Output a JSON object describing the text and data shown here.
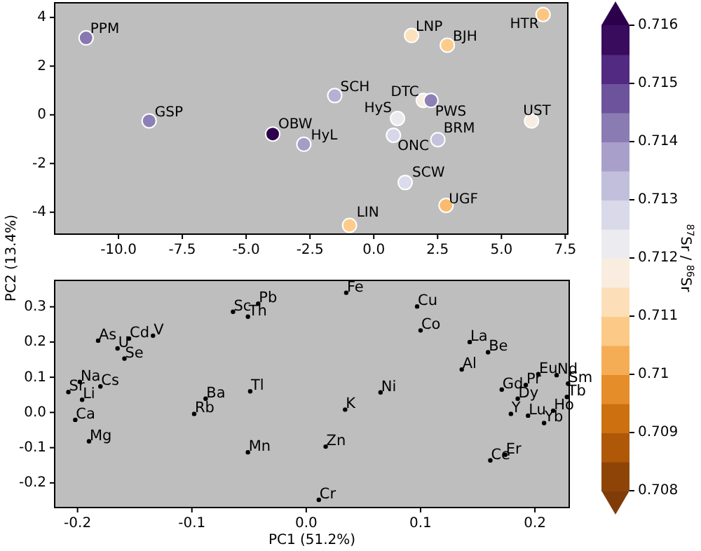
{
  "chart_data": [
    {
      "type": "scatter",
      "ylabel": "PC2 (13.4%)",
      "clabel": "$^{87}$Sr / $^{86}$Sr",
      "clim": [
        0.708,
        0.716
      ],
      "cticks": [
        0.708,
        0.709,
        0.71,
        0.711,
        0.712,
        0.713,
        0.714,
        0.715,
        0.716
      ],
      "xlim": [
        -12.5,
        7.6
      ],
      "ylim": [
        -4.9,
        4.6
      ],
      "xticks": [
        {
          "value": -10,
          "label": "-10.0"
        },
        {
          "value": -7.5,
          "label": "-7.5"
        },
        {
          "value": -5,
          "label": "-5.0"
        },
        {
          "value": -2.5,
          "label": "-2.5"
        },
        {
          "value": 0,
          "label": "0.0"
        },
        {
          "value": 2.5,
          "label": "2.5"
        },
        {
          "value": 5,
          "label": "5.0"
        },
        {
          "value": 7.5,
          "label": "7.5"
        }
      ],
      "yticks": [
        -4,
        -2,
        0,
        2,
        4
      ],
      "marker": "circle",
      "series": [
        {
          "x": [
            -11.27,
            -8.8,
            -3.96,
            -2.74,
            -1.53,
            -0.95,
            0.93,
            0.77,
            1.48,
            1.23,
            1.94,
            2.24,
            2.51,
            2.88,
            2.83,
            6.18,
            6.63
          ],
          "values": [
            3.16,
            -0.25,
            -0.79,
            -1.21,
            0.79,
            -4.54,
            -0.15,
            -0.84,
            3.26,
            -2.78,
            0.59,
            0.59,
            -1.02,
            2.86,
            -3.72,
            -0.25,
            4.12
          ],
          "cvalues": [
            0.7143,
            0.7142,
            0.716,
            0.7138,
            0.7135,
            0.7108,
            0.7123,
            0.7128,
            0.7113,
            0.7127,
            0.7118,
            0.7142,
            0.7132,
            0.7108,
            0.7105,
            0.7118,
            0.7107
          ]
        }
      ],
      "annotations": [
        {
          "text": "PPM",
          "x": -11.27,
          "y": 3.16
        },
        {
          "text": "GSP",
          "x": -8.8,
          "y": -0.25
        },
        {
          "text": "OBW",
          "x": -3.96,
          "y": -0.79
        },
        {
          "text": "HyL",
          "x": -2.74,
          "y": -1.21
        },
        {
          "text": "SCH",
          "x": -1.53,
          "y": 0.79
        },
        {
          "text": "LIN",
          "x": -0.95,
          "y": -4.54
        },
        {
          "text": "HyS",
          "x": 0.93,
          "y": -0.15
        },
        {
          "text": "ONC",
          "x": 0.77,
          "y": -0.84
        },
        {
          "text": "LNP",
          "x": 1.48,
          "y": 3.26
        },
        {
          "text": "SCW",
          "x": 1.23,
          "y": -2.78
        },
        {
          "text": "DTC",
          "x": 1.94,
          "y": 0.59
        },
        {
          "text": "PWS",
          "x": 2.24,
          "y": 0.59
        },
        {
          "text": "BRM",
          "x": 2.51,
          "y": -1.02
        },
        {
          "text": "BJH",
          "x": 2.88,
          "y": 2.86
        },
        {
          "text": "UGF",
          "x": 2.83,
          "y": -3.72
        },
        {
          "text": "UST",
          "x": 6.18,
          "y": -0.25
        },
        {
          "text": "HTR",
          "x": 6.63,
          "y": 4.12
        }
      ]
    },
    {
      "type": "scatter",
      "xlabel": "PC1 (51.2%)",
      "xlim": [
        -0.22,
        0.23
      ],
      "ylim": [
        -0.27,
        0.375
      ],
      "marker": "circle",
      "xticks": [
        {
          "value": -0.2,
          "label": "-0.2"
        },
        {
          "value": -0.1,
          "label": "-0.1"
        },
        {
          "value": 0,
          "label": "0.0"
        },
        {
          "value": 0.1,
          "label": "0.1"
        },
        {
          "value": 0.2,
          "label": "0.2"
        }
      ],
      "yticks": [
        {
          "value": -0.2,
          "label": "-0.2"
        },
        {
          "value": -0.1,
          "label": "-0.1"
        },
        {
          "value": 0,
          "label": "0.0"
        },
        {
          "value": 0.1,
          "label": "0.1"
        },
        {
          "value": 0.2,
          "label": "0.2"
        },
        {
          "value": 0.3,
          "label": "0.3"
        }
      ],
      "series": [
        {
          "name": "Sc",
          "x": [
            -0.064
          ],
          "values": [
            0.286
          ]
        },
        {
          "name": "Th",
          "x": [
            -0.051
          ],
          "values": [
            0.272
          ]
        },
        {
          "name": "Pb",
          "x": [
            -0.042
          ],
          "values": [
            0.309
          ]
        },
        {
          "name": "As",
          "x": [
            -0.182
          ],
          "values": [
            0.204
          ]
        },
        {
          "name": "U",
          "x": [
            -0.165
          ],
          "values": [
            0.182
          ]
        },
        {
          "name": "Cd",
          "x": [
            -0.155
          ],
          "values": [
            0.21
          ]
        },
        {
          "name": "V",
          "x": [
            -0.134
          ],
          "values": [
            0.218
          ]
        },
        {
          "name": "Se",
          "x": [
            -0.159
          ],
          "values": [
            0.153
          ]
        },
        {
          "name": "Na",
          "x": [
            -0.198
          ],
          "values": [
            0.087
          ]
        },
        {
          "name": "Cs",
          "x": [
            -0.18
          ],
          "values": [
            0.074
          ]
        },
        {
          "name": "Sr",
          "x": [
            -0.208
          ],
          "values": [
            0.058
          ]
        },
        {
          "name": "Li",
          "x": [
            -0.196
          ],
          "values": [
            0.036
          ]
        },
        {
          "name": "Ca",
          "x": [
            -0.202
          ],
          "values": [
            -0.021
          ]
        },
        {
          "name": "Mg",
          "x": [
            -0.19
          ],
          "values": [
            -0.082
          ]
        },
        {
          "name": "Ba",
          "x": [
            -0.088
          ],
          "values": [
            0.039
          ]
        },
        {
          "name": "Rb",
          "x": [
            -0.098
          ],
          "values": [
            -0.004
          ]
        },
        {
          "name": "Tl",
          "x": [
            -0.049
          ],
          "values": [
            0.06
          ]
        },
        {
          "name": "Mn",
          "x": [
            -0.051
          ],
          "values": [
            -0.113
          ]
        },
        {
          "name": "Fe",
          "x": [
            0.035
          ],
          "values": [
            0.34
          ]
        },
        {
          "name": "Cu",
          "x": [
            0.097
          ],
          "values": [
            0.301
          ]
        },
        {
          "name": "Co",
          "x": [
            0.1
          ],
          "values": [
            0.233
          ]
        },
        {
          "name": "La",
          "x": [
            0.143
          ],
          "values": [
            0.2
          ]
        },
        {
          "name": "Be",
          "x": [
            0.159
          ],
          "values": [
            0.171
          ]
        },
        {
          "name": "Al",
          "x": [
            0.136
          ],
          "values": [
            0.122
          ]
        },
        {
          "name": "Ni",
          "x": [
            0.065
          ],
          "values": [
            0.057
          ]
        },
        {
          "name": "K",
          "x": [
            0.034
          ],
          "values": [
            0.008
          ]
        },
        {
          "name": "Zn",
          "x": [
            0.017
          ],
          "values": [
            -0.097
          ]
        },
        {
          "name": "Cr",
          "x": [
            0.011
          ],
          "values": [
            -0.248
          ]
        },
        {
          "name": "Ce",
          "x": [
            0.161
          ],
          "values": [
            -0.136
          ]
        },
        {
          "name": "Er",
          "x": [
            0.174
          ],
          "values": [
            -0.12
          ]
        },
        {
          "name": "Gd",
          "x": [
            0.171
          ],
          "values": [
            0.065
          ]
        },
        {
          "name": "Pr",
          "x": [
            0.192
          ],
          "values": [
            0.078
          ]
        },
        {
          "name": "Eu",
          "x": [
            0.203
          ],
          "values": [
            0.109
          ]
        },
        {
          "name": "Nd",
          "x": [
            0.219
          ],
          "values": [
            0.106
          ]
        },
        {
          "name": "Sm",
          "x": [
            0.229
          ],
          "values": [
            0.082
          ]
        },
        {
          "name": "Tb",
          "x": [
            0.228
          ],
          "values": [
            0.044
          ]
        },
        {
          "name": "Ho",
          "x": [
            0.216
          ],
          "values": [
            0.005
          ]
        },
        {
          "name": "Dy",
          "x": [
            0.185
          ],
          "values": [
            0.039
          ]
        },
        {
          "name": "Y",
          "x": [
            0.179
          ],
          "values": [
            -0.004
          ]
        },
        {
          "name": "Lu",
          "x": [
            0.194
          ],
          "values": [
            -0.009
          ]
        },
        {
          "name": "Yb",
          "x": [
            0.208
          ],
          "values": [
            -0.03
          ]
        }
      ]
    }
  ]
}
